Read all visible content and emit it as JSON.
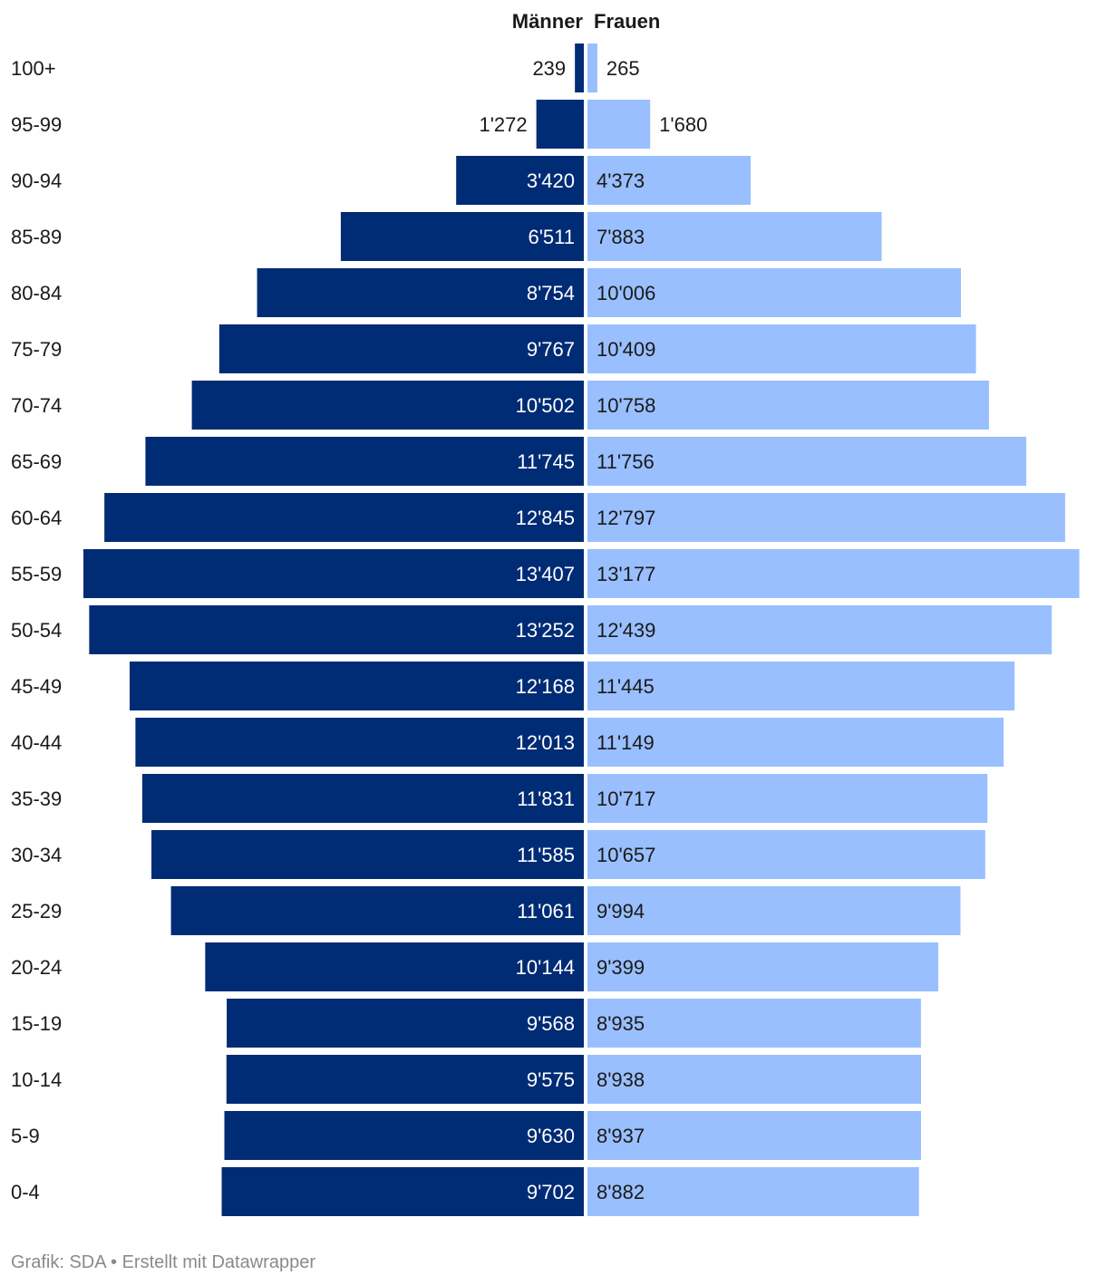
{
  "chart_data": {
    "type": "bar",
    "orientation": "horizontal-butterfly",
    "categories": [
      "100+",
      "95-99",
      "90-94",
      "85-89",
      "80-84",
      "75-79",
      "70-74",
      "65-69",
      "60-64",
      "55-59",
      "50-54",
      "45-49",
      "40-44",
      "35-39",
      "30-34",
      "25-29",
      "20-24",
      "15-19",
      "10-14",
      "5-9",
      "0-4"
    ],
    "series": [
      {
        "name": "Männer",
        "color": "#002b75",
        "values": [
          239,
          1272,
          3420,
          6511,
          8754,
          9767,
          10502,
          11745,
          12845,
          13407,
          13252,
          12168,
          12013,
          11831,
          11585,
          11061,
          10144,
          9568,
          9575,
          9630,
          9702
        ],
        "labels": [
          "239",
          "1'272",
          "3'420",
          "6'511",
          "8'754",
          "9'767",
          "10'502",
          "11'745",
          "12'845",
          "13'407",
          "13'252",
          "12'168",
          "12'013",
          "11'831",
          "11'585",
          "11'061",
          "10'144",
          "9'568",
          "9'575",
          "9'630",
          "9'702"
        ]
      },
      {
        "name": "Frauen",
        "color": "#99bfff",
        "values": [
          265,
          1680,
          4373,
          7883,
          10006,
          10409,
          10758,
          11756,
          12797,
          13177,
          12439,
          11445,
          11149,
          10717,
          10657,
          9994,
          9399,
          8935,
          8938,
          8937,
          8882
        ],
        "labels": [
          "265",
          "1'680",
          "4'373",
          "7'883",
          "10'006",
          "10'409",
          "10'758",
          "11'756",
          "12'797",
          "13'177",
          "12'439",
          "11'445",
          "11'149",
          "10'717",
          "10'657",
          "9'994",
          "9'399",
          "8'935",
          "8'938",
          "8'937",
          "8'882"
        ]
      }
    ]
  },
  "footer": "Grafik: SDA • Erstellt mit Datawrapper"
}
